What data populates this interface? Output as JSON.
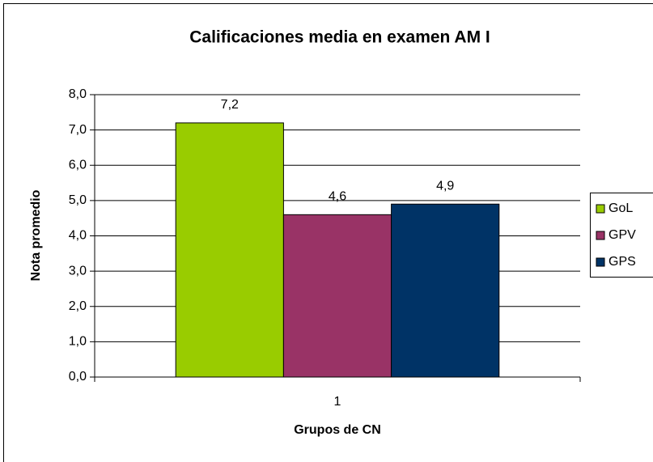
{
  "chart_data": {
    "type": "bar",
    "title": "Calificaciones media en examen AM I",
    "x_label": "Grupos de CN",
    "y_label": "Nota promedio",
    "categories": [
      "1"
    ],
    "series": [
      {
        "name": "GoL",
        "color": "#99cc00",
        "values": [
          7.2
        ],
        "value_labels": [
          "7,2"
        ]
      },
      {
        "name": "GPV",
        "color": "#993366",
        "values": [
          4.6
        ],
        "value_labels": [
          "4,6"
        ]
      },
      {
        "name": "GPS",
        "color": "#003366",
        "values": [
          4.9
        ],
        "value_labels": [
          "4,9"
        ]
      }
    ],
    "ylim": [
      0,
      8
    ],
    "yticks": [
      {
        "value": 0,
        "label": "0,0"
      },
      {
        "value": 1,
        "label": "1,0"
      },
      {
        "value": 2,
        "label": "2,0"
      },
      {
        "value": 3,
        "label": "3,0"
      },
      {
        "value": 4,
        "label": "4,0"
      },
      {
        "value": 5,
        "label": "5,0"
      },
      {
        "value": 6,
        "label": "6,0"
      },
      {
        "value": 7,
        "label": "7,0"
      },
      {
        "value": 8,
        "label": "8,0"
      }
    ],
    "grid": true,
    "legend": "right"
  }
}
